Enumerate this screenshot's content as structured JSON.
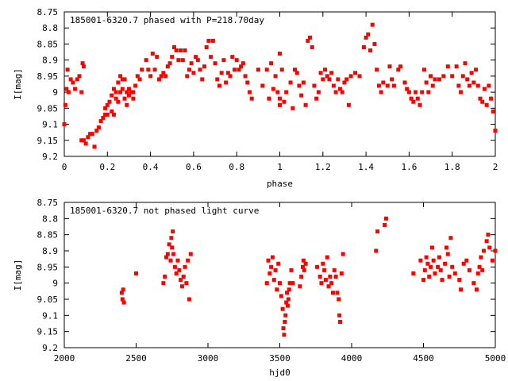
{
  "chart_data": [
    {
      "type": "scatter",
      "title": "185001-6320.7 phased with P=218.70day",
      "xlabel": "phase",
      "ylabel": "I[mag]",
      "xlim": [
        0,
        2
      ],
      "ylim": [
        9.2,
        8.75
      ],
      "y_inverted": true,
      "grid": false,
      "marker_color": "#ff0000",
      "x_ticks": [
        "0",
        "0.2",
        "0.4",
        "0.6",
        "0.8",
        "1",
        "1.2",
        "1.4",
        "1.6",
        "1.8",
        "2"
      ],
      "y_ticks": [
        "8.75",
        "8.8",
        "8.85",
        "8.9",
        "8.95",
        "9",
        "9.05",
        "9.1",
        "9.15",
        "9.2"
      ],
      "points": [
        [
          0.0,
          9.1
        ],
        [
          0.005,
          9.04
        ],
        [
          0.01,
          8.99
        ],
        [
          0.015,
          8.93
        ],
        [
          0.02,
          9.0
        ],
        [
          0.03,
          8.96
        ],
        [
          0.04,
          8.97
        ],
        [
          0.05,
          8.99
        ],
        [
          0.06,
          8.96
        ],
        [
          0.07,
          8.95
        ],
        [
          0.08,
          9.0
        ],
        [
          0.085,
          8.91
        ],
        [
          0.09,
          8.92
        ],
        [
          0.08,
          9.15
        ],
        [
          0.09,
          9.15
        ],
        [
          0.1,
          9.16
        ],
        [
          0.11,
          9.14
        ],
        [
          0.12,
          9.13
        ],
        [
          0.13,
          9.13
        ],
        [
          0.14,
          9.17
        ],
        [
          0.15,
          9.12
        ],
        [
          0.16,
          9.11
        ],
        [
          0.17,
          9.09
        ],
        [
          0.18,
          9.08
        ],
        [
          0.19,
          9.05
        ],
        [
          0.19,
          9.07
        ],
        [
          0.2,
          9.07
        ],
        [
          0.2,
          9.04
        ],
        [
          0.21,
          9.03
        ],
        [
          0.22,
          9.06
        ],
        [
          0.22,
          9.01
        ],
        [
          0.23,
          9.07
        ],
        [
          0.23,
          8.99
        ],
        [
          0.24,
          9.02
        ],
        [
          0.24,
          9.0
        ],
        [
          0.25,
          8.97
        ],
        [
          0.25,
          9.03
        ],
        [
          0.26,
          8.95
        ],
        [
          0.26,
          9.0
        ],
        [
          0.27,
          8.96
        ],
        [
          0.27,
          8.99
        ],
        [
          0.28,
          8.96
        ],
        [
          0.28,
          9.02
        ],
        [
          0.29,
          9.0
        ],
        [
          0.29,
          9.04
        ],
        [
          0.3,
          8.99
        ],
        [
          0.3,
          9.01
        ],
        [
          0.31,
          9.0
        ],
        [
          0.32,
          9.0
        ],
        [
          0.32,
          9.02
        ],
        [
          0.33,
          8.98
        ],
        [
          0.34,
          8.95
        ],
        [
          0.35,
          8.96
        ],
        [
          0.36,
          8.93
        ],
        [
          0.38,
          8.9
        ],
        [
          0.39,
          8.93
        ],
        [
          0.4,
          8.95
        ],
        [
          0.41,
          8.88
        ],
        [
          0.42,
          8.93
        ],
        [
          0.43,
          8.89
        ],
        [
          0.44,
          8.96
        ],
        [
          0.45,
          8.95
        ],
        [
          0.46,
          8.94
        ],
        [
          0.47,
          8.95
        ],
        [
          0.48,
          8.92
        ],
        [
          0.49,
          8.91
        ],
        [
          0.5,
          8.89
        ],
        [
          0.51,
          8.86
        ],
        [
          0.52,
          8.87
        ],
        [
          0.53,
          8.9
        ],
        [
          0.54,
          8.87
        ],
        [
          0.55,
          8.9
        ],
        [
          0.56,
          8.87
        ],
        [
          0.57,
          8.95
        ],
        [
          0.58,
          8.93
        ],
        [
          0.59,
          8.91
        ],
        [
          0.6,
          8.94
        ],
        [
          0.61,
          8.89
        ],
        [
          0.62,
          8.9
        ],
        [
          0.63,
          8.93
        ],
        [
          0.64,
          8.96
        ],
        [
          0.65,
          8.92
        ],
        [
          0.66,
          8.86
        ],
        [
          0.67,
          8.84
        ],
        [
          0.68,
          8.89
        ],
        [
          0.69,
          8.84
        ],
        [
          0.7,
          8.91
        ],
        [
          0.71,
          8.96
        ],
        [
          0.72,
          8.98
        ],
        [
          0.73,
          8.94
        ],
        [
          0.74,
          8.9
        ],
        [
          0.75,
          8.97
        ],
        [
          0.76,
          8.94
        ],
        [
          0.77,
          8.95
        ],
        [
          0.78,
          8.89
        ],
        [
          0.79,
          8.93
        ],
        [
          0.8,
          8.9
        ],
        [
          0.81,
          8.93
        ],
        [
          0.82,
          8.92
        ],
        [
          0.83,
          8.91
        ],
        [
          0.84,
          8.95
        ],
        [
          0.85,
          8.97
        ],
        [
          0.86,
          9.0
        ],
        [
          0.87,
          9.02
        ],
        [
          0.9,
          8.93
        ],
        [
          0.92,
          8.98
        ],
        [
          0.94,
          8.93
        ],
        [
          0.95,
          9.02
        ],
        [
          0.96,
          8.91
        ],
        [
          0.97,
          8.99
        ],
        [
          0.98,
          8.95
        ],
        [
          0.99,
          9.0
        ],
        [
          1.0,
          9.02
        ],
        [
          1.0,
          9.04
        ],
        [
          1.0,
          8.88
        ],
        [
          1.01,
          8.93
        ],
        [
          1.02,
          9.03
        ],
        [
          1.03,
          9.0
        ],
        [
          1.05,
          8.97
        ],
        [
          1.06,
          9.05
        ],
        [
          1.07,
          8.93
        ],
        [
          1.08,
          8.94
        ],
        [
          1.09,
          8.98
        ],
        [
          1.1,
          9.01
        ],
        [
          1.11,
          8.97
        ],
        [
          1.12,
          9.04
        ],
        [
          1.13,
          8.84
        ],
        [
          1.14,
          8.83
        ],
        [
          1.15,
          8.86
        ],
        [
          1.16,
          8.98
        ],
        [
          1.17,
          9.02
        ],
        [
          1.18,
          9.0
        ],
        [
          1.19,
          8.94
        ],
        [
          1.2,
          8.96
        ],
        [
          1.21,
          8.93
        ],
        [
          1.22,
          8.95
        ],
        [
          1.23,
          8.96
        ],
        [
          1.24,
          8.94
        ],
        [
          1.25,
          8.98
        ],
        [
          1.26,
          9.0
        ],
        [
          1.27,
          8.96
        ],
        [
          1.28,
          8.99
        ],
        [
          1.29,
          9.0
        ],
        [
          1.3,
          8.97
        ],
        [
          1.31,
          8.96
        ],
        [
          1.32,
          9.04
        ],
        [
          1.33,
          8.95
        ],
        [
          1.35,
          8.94
        ],
        [
          1.37,
          8.95
        ],
        [
          1.39,
          8.86
        ],
        [
          1.4,
          8.83
        ],
        [
          1.41,
          8.82
        ],
        [
          1.42,
          8.87
        ],
        [
          1.43,
          8.79
        ],
        [
          1.44,
          8.85
        ],
        [
          1.45,
          8.93
        ],
        [
          1.46,
          8.98
        ],
        [
          1.47,
          9.0
        ],
        [
          1.48,
          8.97
        ],
        [
          1.5,
          8.98
        ],
        [
          1.51,
          8.92
        ],
        [
          1.52,
          8.96
        ],
        [
          1.53,
          8.98
        ],
        [
          1.55,
          8.93
        ],
        [
          1.56,
          8.92
        ],
        [
          1.58,
          8.97
        ],
        [
          1.59,
          8.99
        ],
        [
          1.6,
          9.0
        ],
        [
          1.61,
          9.02
        ],
        [
          1.62,
          9.03
        ],
        [
          1.63,
          9.0
        ],
        [
          1.64,
          9.02
        ],
        [
          1.65,
          9.04
        ],
        [
          1.66,
          9.0
        ],
        [
          1.67,
          8.93
        ],
        [
          1.68,
          8.97
        ],
        [
          1.69,
          9.0
        ],
        [
          1.7,
          8.95
        ],
        [
          1.71,
          8.98
        ],
        [
          1.72,
          8.96
        ],
        [
          1.74,
          8.96
        ],
        [
          1.76,
          8.95
        ],
        [
          1.78,
          8.92
        ],
        [
          1.8,
          8.95
        ],
        [
          1.82,
          8.92
        ],
        [
          1.83,
          8.98
        ],
        [
          1.84,
          9.0
        ],
        [
          1.85,
          8.95
        ],
        [
          1.86,
          8.91
        ],
        [
          1.87,
          8.96
        ],
        [
          1.88,
          8.98
        ],
        [
          1.89,
          8.94
        ],
        [
          1.9,
          8.97
        ],
        [
          1.91,
          8.93
        ],
        [
          1.92,
          8.98
        ],
        [
          1.93,
          9.02
        ],
        [
          1.94,
          9.03
        ],
        [
          1.95,
          8.99
        ],
        [
          1.96,
          9.04
        ],
        [
          1.97,
          8.98
        ],
        [
          1.98,
          9.02
        ],
        [
          1.99,
          9.06
        ],
        [
          2.0,
          9.12
        ]
      ]
    },
    {
      "type": "scatter",
      "title": "185001-6320.7 not phased light curve",
      "xlabel": "hjd0",
      "ylabel": "I[mag]",
      "xlim": [
        2000,
        5000
      ],
      "ylim": [
        9.2,
        8.75
      ],
      "y_inverted": true,
      "grid": false,
      "marker_color": "#ff0000",
      "x_ticks": [
        "2000",
        "2500",
        "3000",
        "3500",
        "4000",
        "4500",
        "5000"
      ],
      "y_ticks": [
        "8.75",
        "8.8",
        "8.85",
        "8.9",
        "8.95",
        "9",
        "9.05",
        "9.1",
        "9.15",
        "9.2"
      ],
      "points": [
        [
          2400,
          9.03
        ],
        [
          2405,
          9.05
        ],
        [
          2410,
          9.02
        ],
        [
          2415,
          9.06
        ],
        [
          2500,
          8.97
        ],
        [
          2690,
          9.0
        ],
        [
          2700,
          8.98
        ],
        [
          2710,
          8.92
        ],
        [
          2720,
          8.91
        ],
        [
          2730,
          8.88
        ],
        [
          2740,
          8.93
        ],
        [
          2745,
          8.86
        ],
        [
          2750,
          8.89
        ],
        [
          2755,
          8.84
        ],
        [
          2760,
          8.91
        ],
        [
          2770,
          8.95
        ],
        [
          2780,
          8.97
        ],
        [
          2790,
          8.93
        ],
        [
          2800,
          8.96
        ],
        [
          2810,
          8.99
        ],
        [
          2820,
          9.01
        ],
        [
          2830,
          8.98
        ],
        [
          2840,
          8.95
        ],
        [
          2850,
          9.0
        ],
        [
          2860,
          8.93
        ],
        [
          2870,
          9.05
        ],
        [
          2880,
          8.91
        ],
        [
          3410,
          9.0
        ],
        [
          3420,
          8.93
        ],
        [
          3430,
          8.97
        ],
        [
          3440,
          8.95
        ],
        [
          3450,
          8.92
        ],
        [
          3460,
          8.99
        ],
        [
          3470,
          8.96
        ],
        [
          3480,
          9.02
        ],
        [
          3490,
          8.94
        ],
        [
          3500,
          9.0
        ],
        [
          3510,
          9.04
        ],
        [
          3520,
          9.08
        ],
        [
          3525,
          9.14
        ],
        [
          3530,
          9.16
        ],
        [
          3535,
          9.12
        ],
        [
          3540,
          9.1
        ],
        [
          3545,
          9.06
        ],
        [
          3550,
          9.03
        ],
        [
          3555,
          9.07
        ],
        [
          3560,
          9.05
        ],
        [
          3565,
          9.02
        ],
        [
          3570,
          9.0
        ],
        [
          3580,
          8.96
        ],
        [
          3590,
          9.0
        ],
        [
          3640,
          9.01
        ],
        [
          3650,
          8.98
        ],
        [
          3660,
          8.95
        ],
        [
          3665,
          8.93
        ],
        [
          3670,
          8.96
        ],
        [
          3680,
          8.94
        ],
        [
          3760,
          8.95
        ],
        [
          3780,
          8.98
        ],
        [
          3790,
          9.0
        ],
        [
          3800,
          8.94
        ],
        [
          3810,
          8.96
        ],
        [
          3820,
          8.99
        ],
        [
          3830,
          8.92
        ],
        [
          3840,
          9.01
        ],
        [
          3850,
          8.98
        ],
        [
          3860,
          9.0
        ],
        [
          3870,
          9.03
        ],
        [
          3880,
          8.96
        ],
        [
          3890,
          8.98
        ],
        [
          3900,
          9.03
        ],
        [
          3910,
          9.05
        ],
        [
          3915,
          9.1
        ],
        [
          3920,
          9.12
        ],
        [
          3930,
          8.97
        ],
        [
          3940,
          8.91
        ],
        [
          4170,
          8.9
        ],
        [
          4180,
          8.84
        ],
        [
          4230,
          8.82
        ],
        [
          4240,
          8.8
        ],
        [
          4430,
          8.97
        ],
        [
          4480,
          8.93
        ],
        [
          4500,
          8.99
        ],
        [
          4510,
          8.96
        ],
        [
          4520,
          8.92
        ],
        [
          4530,
          8.94
        ],
        [
          4540,
          8.98
        ],
        [
          4550,
          8.95
        ],
        [
          4560,
          8.89
        ],
        [
          4570,
          8.93
        ],
        [
          4580,
          8.97
        ],
        [
          4600,
          8.95
        ],
        [
          4610,
          8.92
        ],
        [
          4620,
          8.96
        ],
        [
          4630,
          8.99
        ],
        [
          4650,
          8.94
        ],
        [
          4660,
          8.89
        ],
        [
          4670,
          8.91
        ],
        [
          4680,
          8.98
        ],
        [
          4690,
          8.86
        ],
        [
          4700,
          8.95
        ],
        [
          4720,
          8.97
        ],
        [
          4750,
          8.99
        ],
        [
          4760,
          9.02
        ],
        [
          4780,
          8.94
        ],
        [
          4800,
          8.93
        ],
        [
          4820,
          8.96
        ],
        [
          4850,
          9.0
        ],
        [
          4870,
          9.02
        ],
        [
          4880,
          8.97
        ],
        [
          4890,
          8.95
        ],
        [
          4900,
          8.92
        ],
        [
          4910,
          8.96
        ],
        [
          4920,
          8.9
        ],
        [
          4940,
          8.87
        ],
        [
          4950,
          8.85
        ],
        [
          4960,
          8.89
        ],
        [
          4980,
          8.93
        ],
        [
          5000,
          8.9
        ]
      ]
    }
  ]
}
